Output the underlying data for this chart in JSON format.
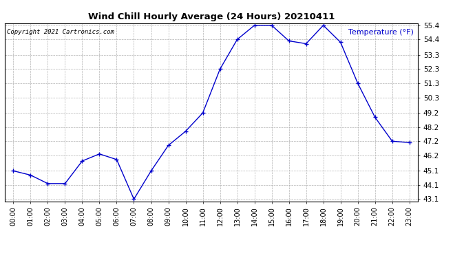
{
  "title": "Wind Chill Hourly Average (24 Hours) 20210411",
  "ylabel": "Temperature (°F)",
  "copyright_text": "Copyright 2021 Cartronics.com",
  "hours": [
    "00:00",
    "01:00",
    "02:00",
    "03:00",
    "04:00",
    "05:00",
    "06:00",
    "07:00",
    "08:00",
    "09:00",
    "10:00",
    "11:00",
    "12:00",
    "13:00",
    "14:00",
    "15:00",
    "16:00",
    "17:00",
    "18:00",
    "19:00",
    "20:00",
    "21:00",
    "22:00",
    "23:00"
  ],
  "values": [
    45.1,
    44.8,
    44.2,
    44.2,
    45.8,
    46.3,
    45.9,
    43.1,
    45.1,
    46.9,
    47.9,
    49.2,
    52.3,
    54.4,
    55.4,
    55.4,
    54.3,
    54.1,
    55.4,
    54.2,
    51.3,
    48.9,
    47.2,
    47.1
  ],
  "line_color": "#0000cc",
  "marker_color": "#0000cc",
  "background_color": "#ffffff",
  "grid_color": "#aaaaaa",
  "title_color": "#000000",
  "ylabel_color": "#0000cc",
  "copyright_color": "#000000",
  "ylim_min": 43.1,
  "ylim_max": 55.4,
  "yticks": [
    43.1,
    44.1,
    45.1,
    46.2,
    47.2,
    48.2,
    49.2,
    50.3,
    51.3,
    52.3,
    53.3,
    54.4,
    55.4
  ]
}
